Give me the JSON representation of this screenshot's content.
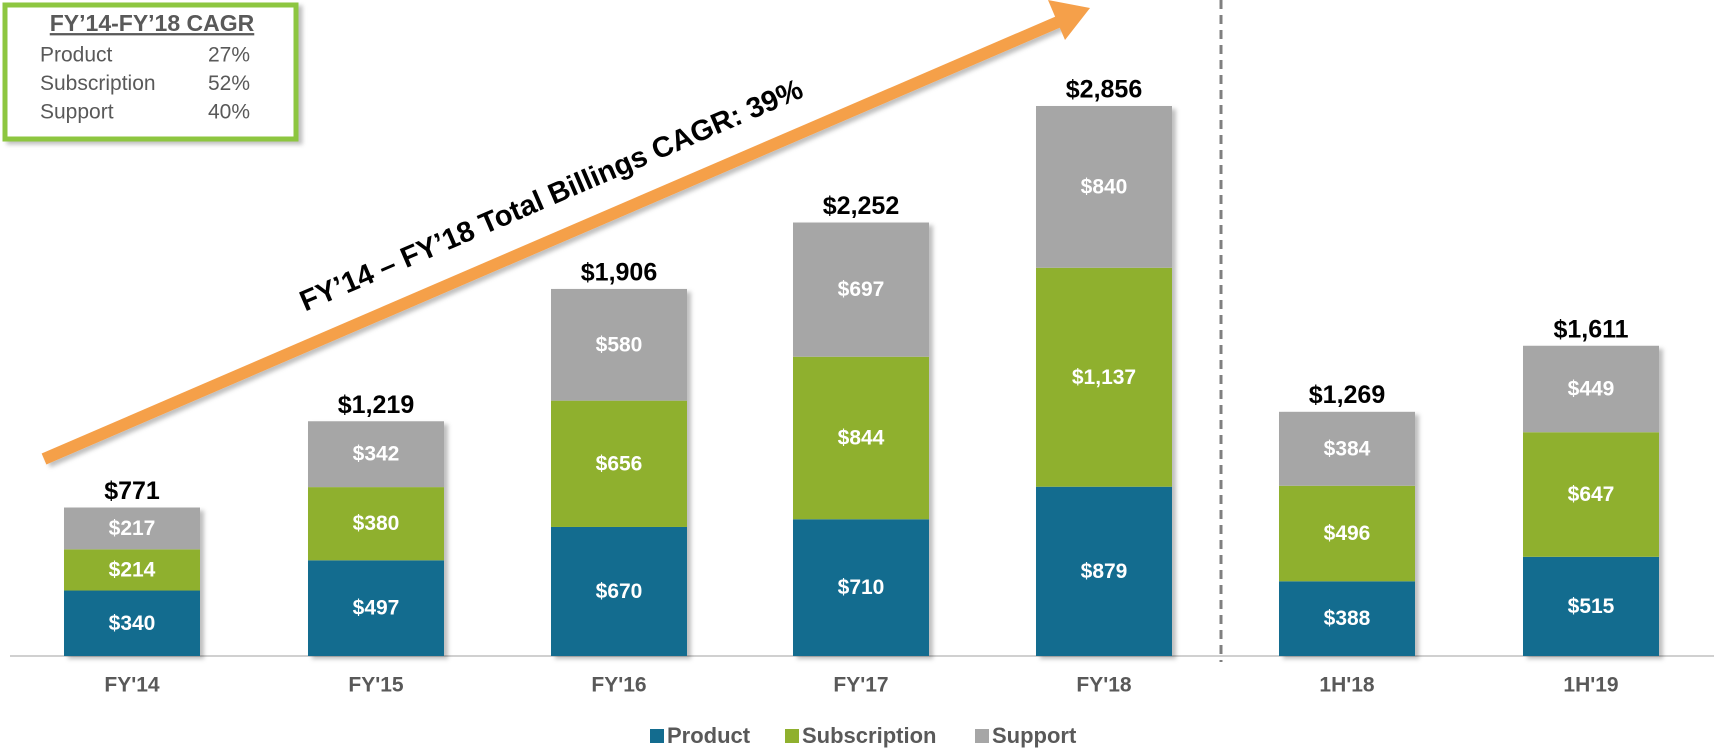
{
  "chart_data": {
    "type": "stacked_bar",
    "categories": [
      "FY'14",
      "FY'15",
      "FY'16",
      "FY'17",
      "FY'18",
      "1H'18",
      "1H'19"
    ],
    "series": [
      {
        "name": "Product",
        "color": "#136c8f",
        "values": [
          340,
          497,
          670,
          710,
          879,
          388,
          515
        ],
        "value_labels": [
          "$340",
          "$497",
          "$670",
          "$710",
          "$879",
          "$388",
          "$515"
        ]
      },
      {
        "name": "Subscription",
        "color": "#8fb02e",
        "values": [
          214,
          380,
          656,
          844,
          1137,
          496,
          647
        ],
        "value_labels": [
          "$214",
          "$380",
          "$656",
          "$844",
          "$1,137",
          "$496",
          "$647"
        ]
      },
      {
        "name": "Support",
        "color": "#a6a6a6",
        "values": [
          217,
          342,
          580,
          697,
          840,
          384,
          449
        ],
        "value_labels": [
          "$217",
          "$342",
          "$580",
          "$697",
          "$840",
          "$384",
          "$449"
        ]
      }
    ],
    "totals": [
      771,
      1219,
      1906,
      2252,
      2856,
      1269,
      1611
    ],
    "total_labels": [
      "$771",
      "$1,219",
      "$1,906",
      "$2,252",
      "$2,856",
      "$1,269",
      "$1,611"
    ],
    "annotation": "FY’14 – FY’18 Total Billings CAGR: 39%",
    "cagr_box": {
      "title": "FY’14-FY’18 CAGR",
      "rows": [
        [
          "Product",
          "27%"
        ],
        [
          "Subscription",
          "52%"
        ],
        [
          "Support",
          "40%"
        ]
      ]
    }
  }
}
